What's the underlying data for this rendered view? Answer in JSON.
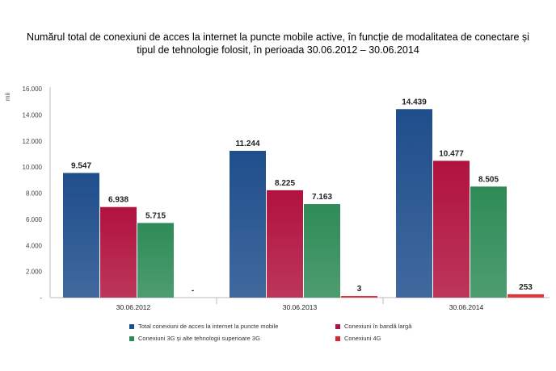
{
  "title": {
    "line1": "Numărul total de conexiuni de acces la internet la puncte mobile active, în funcție de modalitatea de conectare și",
    "line2": "tipul de tehnologie folosit, în perioada 30.06.2012 – 30.06.2014"
  },
  "chart_data": {
    "type": "bar",
    "title": "Numărul total de conexiuni de acces la internet la puncte mobile active, în funcție de modalitatea de conectare și tipul de tehnologie folosit, în perioada 30.06.2012 – 30.06.2014",
    "ylabel": "mii",
    "xlabel": "",
    "ylim": [
      0,
      16000
    ],
    "yticks": [
      0,
      2000,
      4000,
      6000,
      8000,
      10000,
      12000,
      14000,
      16000
    ],
    "ytick_labels": [
      "-",
      "2.000",
      "4.000",
      "6.000",
      "8.000",
      "10.000",
      "12.000",
      "14.000",
      "16.000"
    ],
    "categories": [
      "30.06.2012",
      "30.06.2013",
      "30.06.2014"
    ],
    "series": [
      {
        "name": "Total conexiuni de acces la internet la puncte mobile",
        "color": "#1f4e8c",
        "values": [
          9547,
          11244,
          14439
        ],
        "labels": [
          "9.547",
          "11.244",
          "14.439"
        ]
      },
      {
        "name": "Conexiuni în bandă largă",
        "color": "#b0123e",
        "values": [
          6938,
          8225,
          10477
        ],
        "labels": [
          "6.938",
          "8.225",
          "10.477"
        ]
      },
      {
        "name": "Conexiuni 3G și alte tehnologii superioare 3G",
        "color": "#2e8b57",
        "values": [
          5715,
          7163,
          8505
        ],
        "labels": [
          "5.715",
          "7.163",
          "8.505"
        ]
      },
      {
        "name": "Conexiuni 4G",
        "color": "#e0262a",
        "values": [
          0,
          3,
          253
        ],
        "labels": [
          "-",
          "3",
          "253"
        ]
      }
    ],
    "legend_position": "bottom",
    "grid": false
  }
}
